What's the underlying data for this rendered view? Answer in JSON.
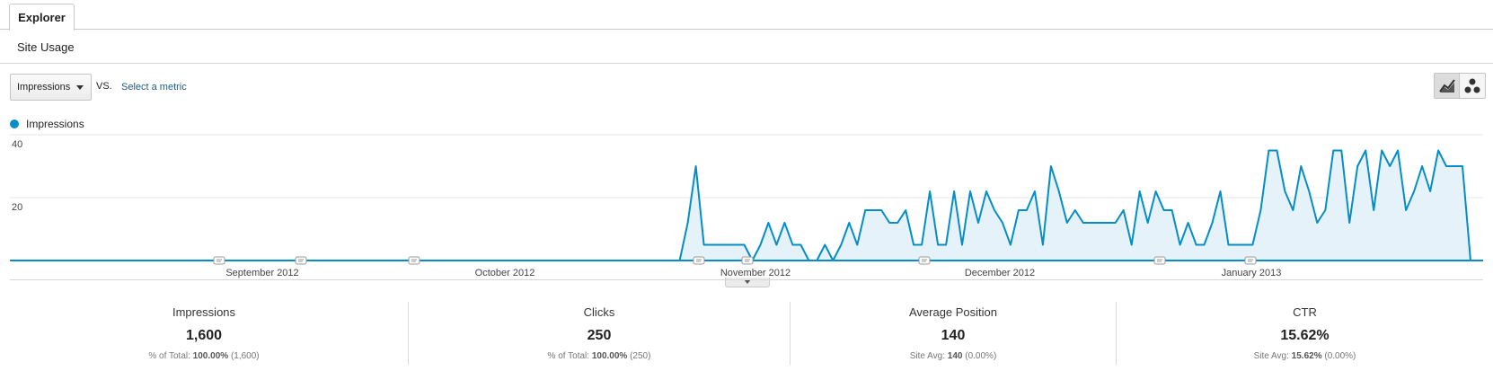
{
  "tabs": {
    "explorer": "Explorer"
  },
  "subtabs": {
    "site_usage": "Site Usage"
  },
  "controls": {
    "metric_select_value": "Impressions",
    "vs_label": "VS.",
    "select_metric_label": "Select a metric"
  },
  "legend": {
    "series_label": "Impressions",
    "color": "#058dc7"
  },
  "chart_data": {
    "type": "area",
    "y_ticks": [
      "40",
      "20"
    ],
    "ylim": [
      0,
      40
    ],
    "grid": true,
    "x_month_labels": [
      "September 2012",
      "October 2012",
      "November 2012",
      "December 2012",
      "January 2013"
    ],
    "series": [
      {
        "name": "Impressions",
        "values": [
          0,
          0,
          0,
          0,
          0,
          0,
          0,
          0,
          0,
          0,
          0,
          0,
          0,
          0,
          0,
          0,
          0,
          0,
          0,
          0,
          0,
          0,
          0,
          0,
          0,
          0,
          0,
          0,
          0,
          0,
          0,
          0,
          0,
          0,
          0,
          0,
          0,
          0,
          0,
          0,
          0,
          0,
          0,
          0,
          0,
          0,
          0,
          0,
          0,
          0,
          0,
          0,
          0,
          0,
          0,
          0,
          0,
          0,
          0,
          0,
          0,
          0,
          0,
          0,
          0,
          0,
          0,
          0,
          0,
          0,
          0,
          0,
          0,
          0,
          0,
          0,
          0,
          0,
          0,
          0,
          0,
          0,
          0,
          0,
          12,
          30,
          5,
          5,
          5,
          5,
          5,
          5,
          0,
          5,
          12,
          5,
          12,
          5,
          5,
          0,
          0,
          5,
          0,
          5,
          12,
          5,
          16,
          16,
          16,
          12,
          12,
          16,
          5,
          5,
          22,
          5,
          5,
          22,
          5,
          22,
          12,
          22,
          16,
          12,
          5,
          16,
          16,
          22,
          5,
          30,
          22,
          12,
          16,
          12,
          12,
          12,
          12,
          12,
          16,
          5,
          22,
          12,
          22,
          16,
          16,
          5,
          12,
          5,
          5,
          12,
          22,
          5,
          5,
          5,
          5,
          16,
          35,
          35,
          22,
          16,
          30,
          22,
          12,
          16,
          35,
          35,
          12,
          30,
          35,
          16,
          35,
          30,
          35,
          16,
          22,
          30,
          22,
          35,
          30,
          30,
          30,
          0
        ]
      }
    ]
  },
  "scorecards": [
    {
      "label": "Impressions",
      "value": "1,600",
      "sub_prefix": "% of Total:",
      "sub_bold": "100.00%",
      "sub_suffix": "(1,600)"
    },
    {
      "label": "Clicks",
      "value": "250",
      "sub_prefix": "% of Total:",
      "sub_bold": "100.00%",
      "sub_suffix": "(250)"
    },
    {
      "label": "Average Position",
      "value": "140",
      "sub_prefix": "Site Avg:",
      "sub_bold": "140",
      "sub_suffix": "(0.00%)"
    },
    {
      "label": "CTR",
      "value": "15.62%",
      "sub_prefix": "Site Avg:",
      "sub_bold": "15.62%",
      "sub_suffix": "(0.00%)"
    }
  ]
}
